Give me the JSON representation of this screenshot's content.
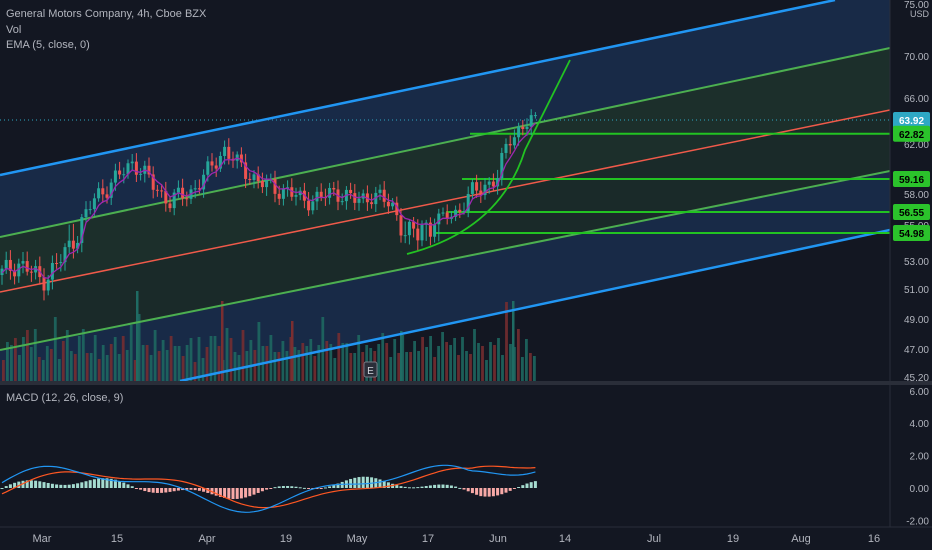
{
  "header": {
    "symbol_line": "General Motors Company, 4h, Cboe BZX",
    "vol_label": "Vol",
    "ema_label": "EMA (5, close, 0)",
    "macd_label": "MACD (12, 26, close, 9)"
  },
  "price_axis": {
    "currency": "USD",
    "ticks": [
      "75.00",
      "70.00",
      "66.00",
      "62.00",
      "58.00",
      "55.00",
      "53.00",
      "51.00",
      "49.00",
      "47.00",
      "45.20"
    ],
    "tick_values": [
      75,
      70,
      66,
      62,
      58,
      55,
      53,
      51,
      49,
      47,
      45.2
    ]
  },
  "macd_axis": {
    "ticks": [
      "6.00",
      "4.00",
      "2.00",
      "0.00",
      "-2.00"
    ],
    "tick_values": [
      6,
      4,
      2,
      0,
      -2
    ]
  },
  "time_axis": {
    "labels": [
      "Mar",
      "15",
      "Apr",
      "19",
      "May",
      "17",
      "Jun",
      "14",
      "Jul",
      "19",
      "Aug",
      "16"
    ]
  },
  "price_badges": [
    {
      "text": "63.92",
      "value": 63.92,
      "color": "#2ea8c4"
    },
    {
      "text": "62.82",
      "value": 62.82,
      "color": "#2bc32b"
    },
    {
      "text": "59.16",
      "value": 59.16,
      "color": "#2bc32b"
    },
    {
      "text": "56.55",
      "value": 56.55,
      "color": "#2bc32b"
    },
    {
      "text": "54.98",
      "value": 54.98,
      "color": "#2bc32b"
    }
  ],
  "earnings_marker": "E",
  "colors": {
    "up": "#26a69a",
    "down": "#ef5350",
    "channel_outer": "#2196f3",
    "channel_inner": "#4caf50",
    "channel_mid": "#f05a4a",
    "hlines": "#22c322",
    "ema": "#9c27b0",
    "macd": "#2196f3",
    "signal": "#ff5722"
  },
  "chart_data": {
    "type": "candlestick",
    "title": "General Motors Company, 4h, Cboe BZX",
    "x_range": [
      "2021-02-22",
      "2021-08-19"
    ],
    "ylim": [
      45.2,
      75
    ],
    "price_levels": [
      62.82,
      59.16,
      56.55,
      54.98
    ],
    "last_price": 63.92,
    "close_path": [
      [
        "2021-02-22",
        52.0
      ],
      [
        "2021-02-25",
        52.9
      ],
      [
        "2021-03-01",
        51.6
      ],
      [
        "2021-03-04",
        52.8
      ],
      [
        "2021-03-08",
        55.2
      ],
      [
        "2021-03-11",
        57.8
      ],
      [
        "2021-03-15",
        59.2
      ],
      [
        "2021-03-18",
        60.6
      ],
      [
        "2021-03-22",
        58.6
      ],
      [
        "2021-03-25",
        57.4
      ],
      [
        "2021-03-29",
        58.2
      ],
      [
        "2021-04-01",
        59.6
      ],
      [
        "2021-04-05",
        61.6
      ],
      [
        "2021-04-08",
        60.3
      ],
      [
        "2021-04-12",
        59.2
      ],
      [
        "2021-04-15",
        58.5
      ],
      [
        "2021-04-19",
        58.3
      ],
      [
        "2021-04-22",
        57.5
      ],
      [
        "2021-04-26",
        57.7
      ],
      [
        "2021-04-29",
        58.2
      ],
      [
        "2021-05-03",
        57.4
      ],
      [
        "2021-05-06",
        58.0
      ],
      [
        "2021-05-10",
        57.0
      ],
      [
        "2021-05-13",
        54.5
      ],
      [
        "2021-05-17",
        55.2
      ],
      [
        "2021-05-20",
        55.8
      ],
      [
        "2021-05-24",
        56.8
      ],
      [
        "2021-05-27",
        58.3
      ],
      [
        "2021-06-01",
        59.2
      ],
      [
        "2021-06-03",
        62.5
      ],
      [
        "2021-06-07",
        63.7
      ],
      [
        "2021-06-09",
        63.92
      ]
    ],
    "volume_ylim": [
      0,
      12
    ]
  }
}
